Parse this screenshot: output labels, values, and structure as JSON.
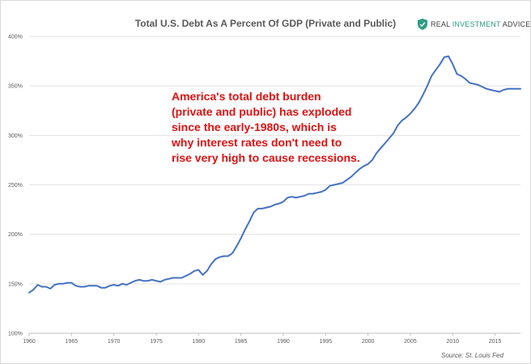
{
  "chart_data": {
    "type": "line",
    "title": "Total U.S. Debt As A Percent Of GDP (Private and Public)",
    "xlabel": "",
    "ylabel": "",
    "xlim": [
      1960,
      2018
    ],
    "ylim": [
      100,
      400
    ],
    "x_ticks": [
      1960,
      1965,
      1970,
      1975,
      1980,
      1985,
      1990,
      1995,
      2000,
      2005,
      2010,
      2015
    ],
    "x_tick_labels": [
      "1960",
      "1965",
      "1970",
      "1975",
      "1980",
      "1985",
      "1990",
      "1995",
      "2000",
      "2005",
      "2010",
      "2015"
    ],
    "y_ticks": [
      100,
      150,
      200,
      250,
      300,
      350,
      400
    ],
    "y_tick_labels": [
      "100%",
      "150%",
      "200%",
      "250%",
      "300%",
      "350%",
      "400%"
    ],
    "grid": "horizontal",
    "line_color": "#4472c4",
    "series": [
      {
        "x": [
          1960,
          1960.5,
          1961,
          1961.5,
          1962,
          1962.5,
          1963,
          1963.5,
          1964,
          1964.5,
          1965,
          1965.5,
          1966,
          1966.5,
          1967,
          1967.5,
          1968,
          1968.5,
          1969,
          1969.5,
          1970,
          1970.5,
          1971,
          1971.5,
          1972,
          1972.5,
          1973,
          1973.5,
          1974,
          1974.5,
          1975,
          1975.5,
          1976,
          1976.5,
          1977,
          1977.5,
          1978,
          1978.5,
          1979,
          1979.5,
          1980,
          1980.5,
          1981,
          1981.5,
          1982,
          1982.5,
          1983,
          1983.5,
          1984,
          1984.5,
          1985,
          1985.5,
          1986,
          1986.5,
          1987,
          1987.5,
          1988,
          1988.5,
          1989,
          1989.5,
          1990,
          1990.5,
          1991,
          1991.5,
          1992,
          1992.5,
          1993,
          1993.5,
          1994,
          1994.5,
          1995,
          1995.5,
          1996,
          1996.5,
          1997,
          1997.5,
          1998,
          1998.5,
          1999,
          1999.5,
          2000,
          2000.5,
          2001,
          2001.5,
          2002,
          2002.5,
          2003,
          2003.5,
          2004,
          2004.5,
          2005,
          2005.5,
          2006,
          2006.5,
          2007,
          2007.5,
          2008,
          2008.5,
          2009,
          2009.5,
          2010,
          2010.5,
          2011,
          2011.5,
          2012,
          2012.5,
          2013,
          2013.5,
          2014,
          2014.5,
          2015,
          2015.5,
          2016,
          2016.5,
          2017,
          2017.5,
          2018
        ],
        "y": [
          141,
          144,
          149,
          147,
          147,
          145,
          149,
          150,
          150,
          151,
          151,
          148,
          147,
          147,
          148,
          148,
          148,
          146,
          146,
          148,
          149,
          148,
          150,
          149,
          151,
          153,
          154,
          153,
          153,
          154,
          153,
          152,
          154,
          155,
          156,
          156,
          156,
          158,
          160,
          163,
          164,
          159,
          163,
          170,
          175,
          177,
          178,
          178,
          181,
          188,
          196,
          205,
          213,
          222,
          226,
          226,
          227,
          228,
          230,
          231,
          233,
          237,
          238,
          237,
          238,
          239,
          241,
          241,
          242,
          243,
          245,
          249,
          250,
          251,
          252,
          255,
          258,
          262,
          266,
          269,
          271,
          275,
          282,
          287,
          292,
          297,
          302,
          310,
          315,
          318,
          322,
          327,
          333,
          341,
          350,
          360,
          366,
          372,
          379,
          380,
          372,
          362,
          360,
          357,
          353,
          352,
          351,
          349,
          347,
          346,
          345,
          344,
          346,
          347,
          347,
          347,
          347
        ]
      }
    ]
  },
  "brand": {
    "logo_icon": "shield-icon",
    "logo_color": "#2e9d83",
    "text_part1": "REAL ",
    "text_part2": "INVESTMENT",
    "text_part3": " ADVICE"
  },
  "annotation": "America's total debt burden\n(private and public) has exploded\nsince the early-1980s, which is\nwhy interest rates don't need to\nrise very high to cause recessions.",
  "source": "Source: St. Louis Fed"
}
